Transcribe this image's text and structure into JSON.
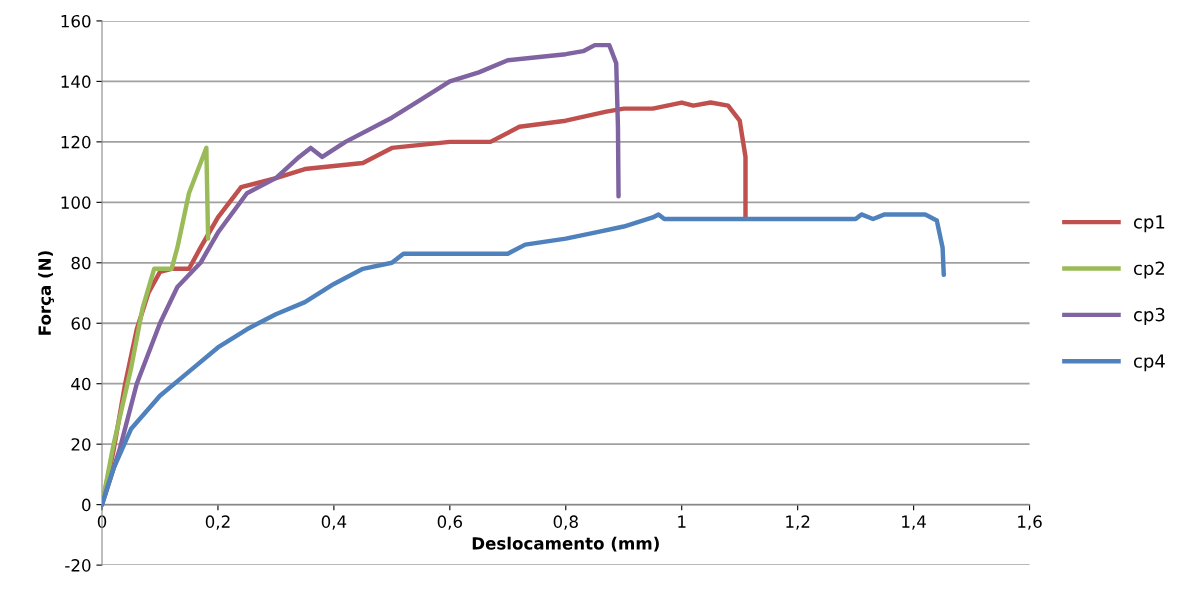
{
  "chart_data": {
    "type": "line",
    "xlabel": "Deslocamento (mm)",
    "ylabel": "Força (N)",
    "xlim": [
      0,
      1.6
    ],
    "xticks": [
      0,
      {
        "value": 0.2,
        "label": "0,2"
      },
      {
        "value": 0.4,
        "label": "0,4"
      },
      {
        "value": 0.6,
        "label": "0,6"
      },
      {
        "value": 0.8,
        "label": "0,8"
      },
      1,
      {
        "value": 1.2,
        "label": "1,2"
      },
      {
        "value": 1.4,
        "label": "1,4"
      },
      {
        "value": 1.6,
        "label": "1,6"
      }
    ],
    "ylim": [
      -20,
      160
    ],
    "yticks": [
      -20,
      0,
      20,
      40,
      60,
      80,
      100,
      120,
      140,
      160
    ],
    "grid": "y",
    "legend": "right",
    "marker": "none",
    "line_style": "solid",
    "series": [
      {
        "name": "cp1",
        "color": "#c0504d",
        "x": [
          0,
          0.02,
          0.04,
          0.06,
          0.08,
          0.1,
          0.12,
          0.15,
          0.17,
          0.2,
          0.24,
          0.3,
          0.35,
          0.45,
          0.5,
          0.6,
          0.67,
          0.72,
          0.8,
          0.87,
          0.9,
          0.95,
          1.0,
          1.02,
          1.05,
          1.08,
          1.1,
          1.11,
          1.11
        ],
        "values": [
          0,
          18,
          40,
          58,
          70,
          77,
          78,
          78,
          85,
          95,
          105,
          108,
          111,
          113,
          118,
          120,
          120,
          125,
          127,
          130,
          131,
          131,
          133,
          132,
          133,
          132,
          127,
          115,
          95
        ]
      },
      {
        "name": "cp2",
        "color": "#9bbb59",
        "x": [
          0,
          0.02,
          0.05,
          0.07,
          0.09,
          0.12,
          0.13,
          0.15,
          0.17,
          0.18,
          0.183
        ],
        "values": [
          0,
          20,
          45,
          65,
          78,
          78,
          85,
          103,
          113,
          118,
          88
        ]
      },
      {
        "name": "cp3",
        "color": "#8064a2",
        "x": [
          0,
          0.03,
          0.06,
          0.1,
          0.13,
          0.17,
          0.2,
          0.25,
          0.3,
          0.34,
          0.36,
          0.38,
          0.42,
          0.5,
          0.55,
          0.6,
          0.65,
          0.7,
          0.75,
          0.8,
          0.83,
          0.85,
          0.875,
          0.887,
          0.89,
          0.891
        ],
        "values": [
          0,
          18,
          40,
          60,
          72,
          80,
          90,
          103,
          108,
          115,
          118,
          115,
          120,
          128,
          134,
          140,
          143,
          147,
          148,
          149,
          150,
          152,
          152,
          146,
          125,
          102
        ]
      },
      {
        "name": "cp4",
        "color": "#4f81bd",
        "x": [
          0,
          0.02,
          0.05,
          0.1,
          0.15,
          0.2,
          0.25,
          0.3,
          0.35,
          0.4,
          0.45,
          0.5,
          0.52,
          0.7,
          0.73,
          0.8,
          0.85,
          0.9,
          0.95,
          0.96,
          0.97,
          1.3,
          1.31,
          1.33,
          1.35,
          1.42,
          1.44,
          1.45,
          1.452
        ],
        "values": [
          0,
          12,
          25,
          36,
          44,
          52,
          58,
          63,
          67,
          73,
          78,
          80,
          83,
          83,
          86,
          88,
          90,
          92,
          95,
          96,
          94.5,
          94.5,
          96,
          94.5,
          96,
          96,
          94,
          85,
          76
        ]
      }
    ]
  }
}
